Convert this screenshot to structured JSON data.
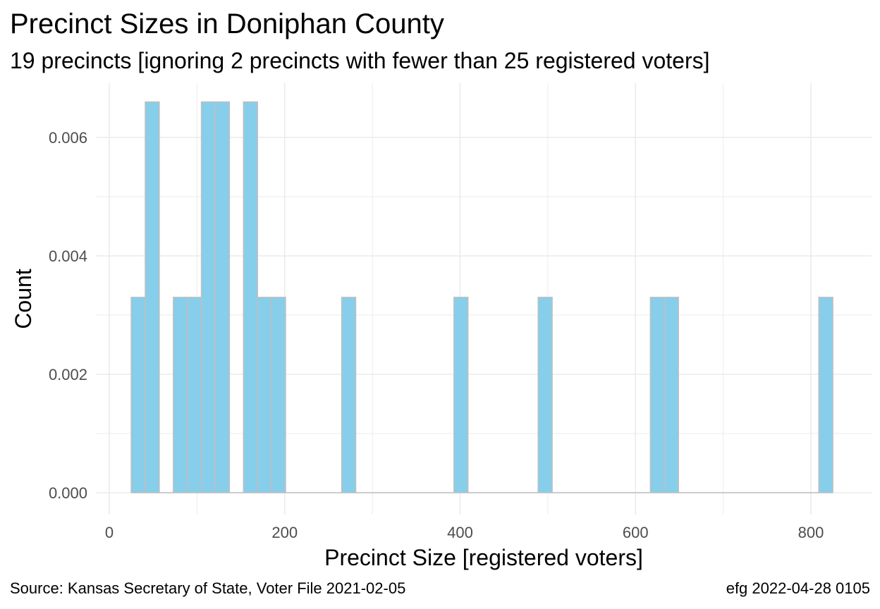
{
  "chart_data": {
    "type": "bar",
    "title": "Precinct Sizes in Doniphan County",
    "subtitle": "19 precincts [ignoring 2 precincts with fewer than 25 registered voters]",
    "xlabel": "Precinct Size [registered voters]",
    "ylabel": "Count",
    "bin_width": 16,
    "bins": [
      {
        "x_start": 25,
        "x_end": 41,
        "value": 0.0033
      },
      {
        "x_start": 41,
        "x_end": 57,
        "value": 0.0066
      },
      {
        "x_start": 57,
        "x_end": 73,
        "value": 0
      },
      {
        "x_start": 73,
        "x_end": 89,
        "value": 0.0033
      },
      {
        "x_start": 89,
        "x_end": 105,
        "value": 0.0033
      },
      {
        "x_start": 105,
        "x_end": 121,
        "value": 0.0066
      },
      {
        "x_start": 121,
        "x_end": 137,
        "value": 0.0066
      },
      {
        "x_start": 137,
        "x_end": 153,
        "value": 0
      },
      {
        "x_start": 153,
        "x_end": 169,
        "value": 0.0066
      },
      {
        "x_start": 169,
        "x_end": 185,
        "value": 0.0033
      },
      {
        "x_start": 185,
        "x_end": 201,
        "value": 0.0033
      },
      {
        "x_start": 201,
        "x_end": 265,
        "value": 0
      },
      {
        "x_start": 265,
        "x_end": 281,
        "value": 0.0033
      },
      {
        "x_start": 281,
        "x_end": 393,
        "value": 0
      },
      {
        "x_start": 393,
        "x_end": 409,
        "value": 0.0033
      },
      {
        "x_start": 409,
        "x_end": 489,
        "value": 0
      },
      {
        "x_start": 489,
        "x_end": 505,
        "value": 0.0033
      },
      {
        "x_start": 505,
        "x_end": 617,
        "value": 0
      },
      {
        "x_start": 617,
        "x_end": 633,
        "value": 0.0033
      },
      {
        "x_start": 633,
        "x_end": 649,
        "value": 0.0033
      },
      {
        "x_start": 649,
        "x_end": 809,
        "value": 0
      },
      {
        "x_start": 809,
        "x_end": 825,
        "value": 0.0033
      }
    ],
    "xlim": [
      0,
      860
    ],
    "ylim": [
      0,
      0.0069
    ],
    "x_ticks": [
      0,
      200,
      400,
      600,
      800
    ],
    "x_tick_labels": [
      "0",
      "200",
      "400",
      "600",
      "800"
    ],
    "y_ticks": [
      0,
      0.002,
      0.004,
      0.006
    ],
    "y_tick_labels": [
      "0.000",
      "0.002",
      "0.004",
      "0.006"
    ],
    "grid": true,
    "legend": "none",
    "bar_fill": "#87ceeb",
    "bar_stroke": "#bfbfbf",
    "grid_color": "#ebebeb"
  },
  "caption": {
    "source": "Source:  Kansas Secretary of State, Voter File  2021-02-05",
    "credit": "efg 2022-04-28 0105"
  }
}
